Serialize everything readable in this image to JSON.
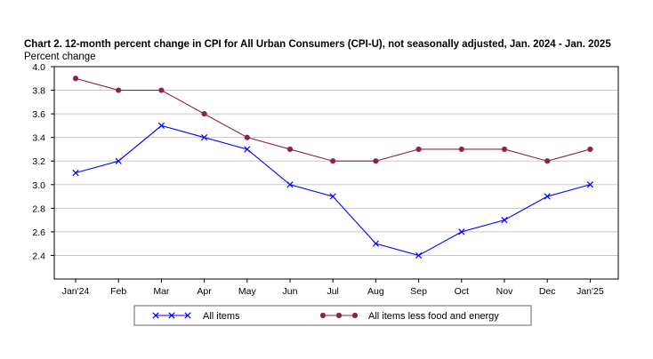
{
  "chart_data": {
    "type": "line",
    "title": "Chart 2. 12-month percent change in CPI for All Urban Consumers (CPI-U), not seasonally adjusted, Jan. 2024 - Jan. 2025",
    "xlabel": "",
    "ylabel": "Percent change",
    "categories": [
      "Jan'24",
      "Feb",
      "Mar",
      "Apr",
      "May",
      "Jun",
      "Jul",
      "Aug",
      "Sep",
      "Oct",
      "Nov",
      "Dec",
      "Jan'25"
    ],
    "ylim": [
      2.2,
      4.0
    ],
    "yticks": [
      "2.4",
      "2.6",
      "2.8",
      "3.0",
      "3.2",
      "3.4",
      "3.6",
      "3.8",
      "4.0"
    ],
    "grid": true,
    "legend_position": "bottom",
    "series": [
      {
        "name": "All items",
        "color": "#0000ff",
        "marker": "x",
        "values": [
          3.1,
          3.2,
          3.5,
          3.4,
          3.3,
          3.0,
          2.9,
          2.5,
          2.4,
          2.6,
          2.7,
          2.9,
          3.0
        ]
      },
      {
        "name": "All items less food and energy",
        "color": "#8b2252",
        "marker": "circle",
        "values": [
          3.9,
          3.8,
          3.8,
          3.6,
          3.4,
          3.3,
          3.2,
          3.2,
          3.3,
          3.3,
          3.3,
          3.2,
          3.3
        ]
      }
    ]
  }
}
